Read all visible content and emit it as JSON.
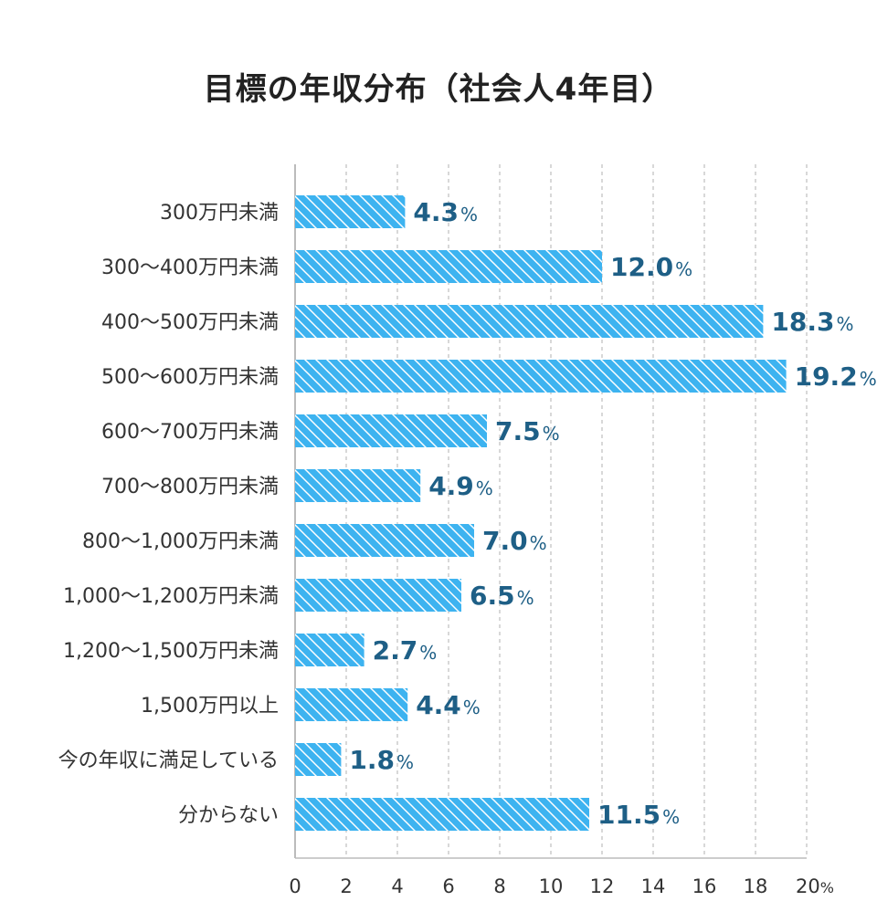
{
  "title": "目標の年収分布（社会人4年目）",
  "colors": {
    "bar": "#3db3f0",
    "stripe": "#ffffff",
    "value_label": "#1e5f86",
    "grid": "#cccccc",
    "axis": "#bbbbbb",
    "text": "#333333"
  },
  "chart_data": {
    "type": "bar",
    "orientation": "horizontal",
    "title": "目標の年収分布（社会人4年目）",
    "xlabel": "",
    "ylabel": "",
    "xlim": [
      0,
      20
    ],
    "x_ticks": [
      0,
      2,
      4,
      6,
      8,
      10,
      12,
      14,
      16,
      18,
      20
    ],
    "x_unit": "%",
    "grid": "vertical-dashed",
    "categories": [
      "300万円未満",
      "300〜400万円未満",
      "400〜500万円未満",
      "500〜600万円未満",
      "600〜700万円未満",
      "700〜800万円未満",
      "800〜1,000万円未満",
      "1,000〜1,200万円未満",
      "1,200〜1,500万円未満",
      "1,500万円以上",
      "今の年収に満足している",
      "分からない"
    ],
    "values": [
      4.3,
      12.0,
      18.3,
      19.2,
      7.5,
      4.9,
      7.0,
      6.5,
      2.7,
      4.4,
      1.8,
      11.5
    ],
    "value_labels": [
      "4.3",
      "12.0",
      "18.3",
      "19.2",
      "7.5",
      "4.9",
      "7.0",
      "6.5",
      "2.7",
      "4.4",
      "1.8",
      "11.5"
    ],
    "value_unit": "%"
  }
}
